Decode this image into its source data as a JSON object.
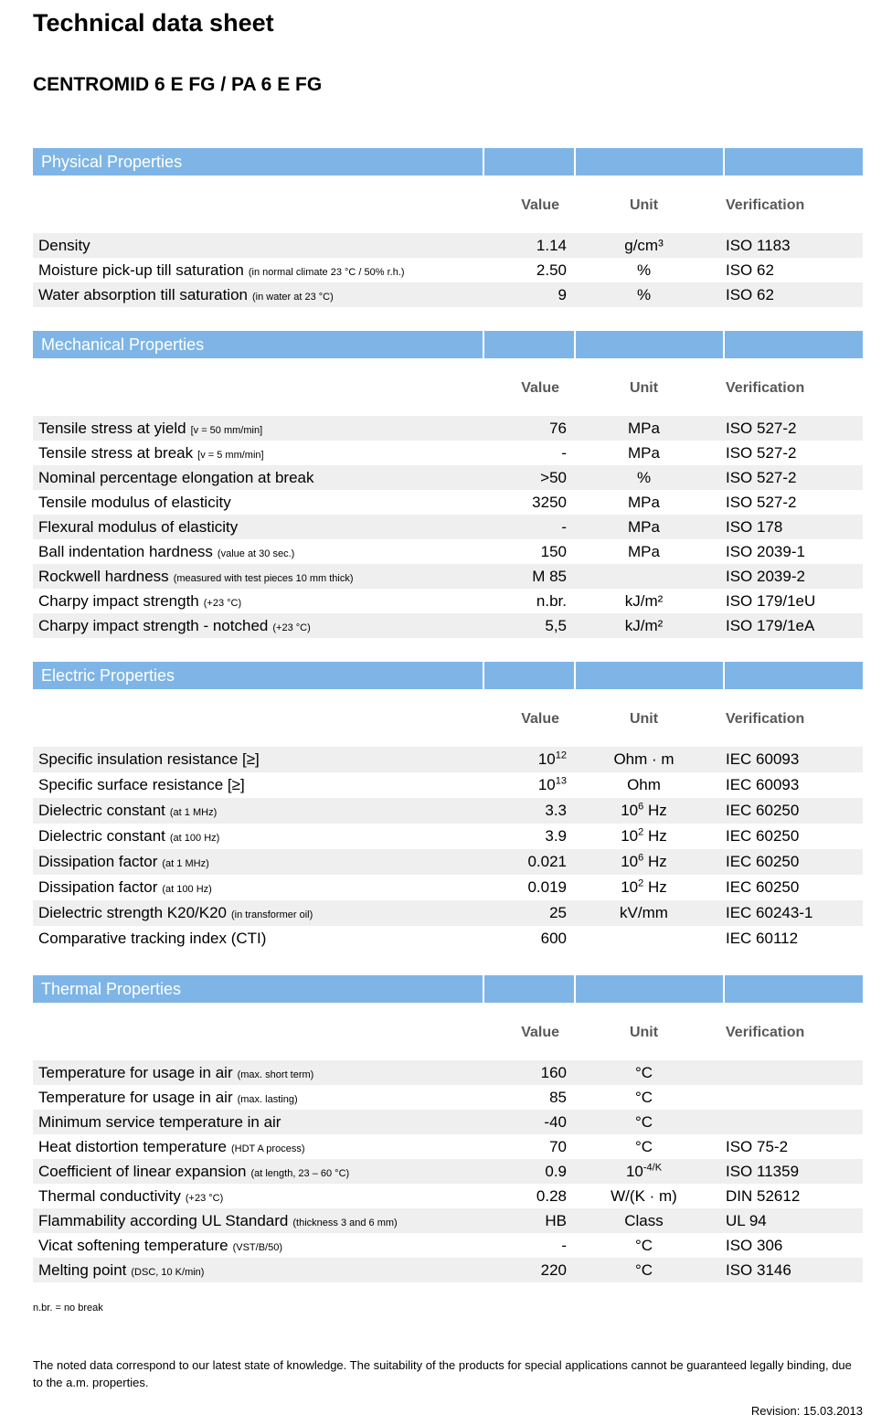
{
  "page": {
    "title": "Technical data sheet",
    "subtitle": "CENTROMID 6 E FG / PA 6 E FG",
    "footnote": "n.br. = no break",
    "disclaimer": "The noted data correspond to our latest state of knowledge. The suitability of the products for special applications cannot be guaranteed legally binding, due to the a.m. properties.",
    "revision": "Revision: 15.03.2013"
  },
  "columns": {
    "value": "Value",
    "unit": "Unit",
    "verification": "Verification"
  },
  "colors": {
    "section_header_bg": "#7EB5E6",
    "section_header_text": "#FFFFFF",
    "column_header_text": "#595959",
    "row_alt_bg": "#EFEFEF"
  },
  "sections": [
    {
      "title": "Physical Properties",
      "rows": [
        {
          "name": "Density",
          "note": "",
          "value": "1.14",
          "unit": "g/cm³",
          "verification": "ISO 1183"
        },
        {
          "name": "Moisture pick-up till saturation",
          "note": "(in normal climate 23 °C / 50% r.h.)",
          "value": "2.50",
          "unit": "%",
          "verification": "ISO 62"
        },
        {
          "name": "Water absorption till saturation",
          "note": "(in water at 23 °C)",
          "value": "9",
          "unit": "%",
          "verification": "ISO 62"
        }
      ]
    },
    {
      "title": "Mechanical Properties",
      "rows": [
        {
          "name": "Tensile stress at yield",
          "note": "[v = 50 mm/min]",
          "value": "76",
          "unit": "MPa",
          "verification": "ISO 527-2"
        },
        {
          "name": "Tensile stress at break",
          "note": "[v = 5 mm/min]",
          "value": "-",
          "unit": "MPa",
          "verification": "ISO 527-2"
        },
        {
          "name": "Nominal percentage elongation at break",
          "note": "",
          "value": ">50",
          "unit": "%",
          "verification": "ISO 527-2"
        },
        {
          "name": "Tensile modulus of elasticity",
          "note": "",
          "value": "3250",
          "unit": "MPa",
          "verification": "ISO 527-2"
        },
        {
          "name": "Flexural modulus of elasticity",
          "note": "",
          "value": "-",
          "unit": "MPa",
          "verification": "ISO 178"
        },
        {
          "name": "Ball indentation hardness",
          "note": "(value at 30 sec.)",
          "value": "150",
          "unit": "MPa",
          "verification": "ISO 2039-1"
        },
        {
          "name": "Rockwell hardness",
          "note": "(measured with test pieces 10 mm thick)",
          "value": "M 85",
          "unit": "",
          "verification": "ISO 2039-2"
        },
        {
          "name": "Charpy impact strength",
          "note": "(+23 °C)",
          "value": "n.br.",
          "unit": "kJ/m²",
          "verification": "ISO 179/1eU"
        },
        {
          "name": "Charpy impact strength - notched",
          "note": "(+23 °C)",
          "value": "5,5",
          "unit": "kJ/m²",
          "verification": "ISO 179/1eA"
        }
      ]
    },
    {
      "title": "Electric Properties",
      "rows": [
        {
          "name": "Specific insulation resistance [≥]",
          "note": "",
          "value": "10^{12}",
          "unit": "Ohm · m",
          "verification": "IEC 60093"
        },
        {
          "name": "Specific surface resistance [≥]",
          "note": "",
          "value": "10^{13}",
          "unit": "Ohm",
          "verification": "IEC 60093"
        },
        {
          "name": "Dielectric constant",
          "note": "(at 1 MHz)",
          "value": "3.3",
          "unit": "10^{6} Hz",
          "verification": "IEC 60250"
        },
        {
          "name": "Dielectric constant",
          "note": "(at 100 Hz)",
          "value": "3.9",
          "unit": "10^{2} Hz",
          "verification": "IEC 60250"
        },
        {
          "name": "Dissipation factor",
          "note": "(at 1 MHz)",
          "value": "0.021",
          "unit": "10^{6} Hz",
          "verification": "IEC 60250"
        },
        {
          "name": "Dissipation factor",
          "note": "(at 100 Hz)",
          "value": "0.019",
          "unit": "10^{2} Hz",
          "verification": "IEC 60250"
        },
        {
          "name": "Dielectric strength K20/K20",
          "note": "(in transformer oil)",
          "value": "25",
          "unit": "kV/mm",
          "verification": "IEC 60243-1"
        },
        {
          "name": "Comparative tracking index (CTI)",
          "note": "",
          "value": "600",
          "unit": "",
          "verification": "IEC 60112"
        }
      ]
    },
    {
      "title": "Thermal Properties",
      "rows": [
        {
          "name": "Temperature for usage in air",
          "note": "(max. short term)",
          "value": "160",
          "unit": "°C",
          "verification": ""
        },
        {
          "name": "Temperature for usage in air",
          "note": "(max. lasting)",
          "value": "85",
          "unit": "°C",
          "verification": ""
        },
        {
          "name": "Minimum service temperature in air",
          "note": "",
          "value": "-40",
          "unit": "°C",
          "verification": ""
        },
        {
          "name": "Heat distortion temperature",
          "note": "(HDT A process)",
          "value": "70",
          "unit": "°C",
          "verification": "ISO 75-2"
        },
        {
          "name": "Coefficient of linear expansion",
          "note": "(at length, 23 – 60 °C)",
          "value": "0.9",
          "unit": "10^{-4/K}",
          "verification": "ISO 11359"
        },
        {
          "name": "Thermal conductivity",
          "note": "(+23 °C)",
          "value": "0.28",
          "unit": "W/(K · m)",
          "verification": "DIN 52612"
        },
        {
          "name": "Flammability according UL Standard",
          "note": "(thickness 3 and 6 mm)",
          "value": "HB",
          "unit": "Class",
          "verification": "UL 94"
        },
        {
          "name": "Vicat softening temperature",
          "note": "(VST/B/50)",
          "value": "-",
          "unit": "°C",
          "verification": "ISO 306"
        },
        {
          "name": "Melting point",
          "note": "(DSC, 10 K/min)",
          "value": "220",
          "unit": "°C",
          "verification": "ISO 3146"
        }
      ]
    }
  ]
}
